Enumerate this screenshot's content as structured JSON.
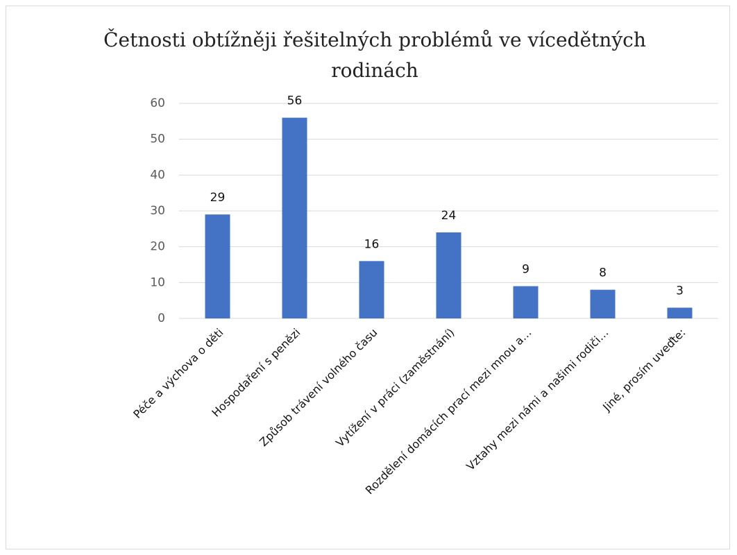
{
  "chart_data": {
    "type": "bar",
    "title": "Četnosti obtížněji řešitelných problémů ve vícedětných rodinách",
    "categories": [
      "Péče a výchova o děti",
      "Hospodaření s penězi",
      "Způsob trávení volného času",
      "Vytížení v práci (zaměstnání)",
      "Rozdělení domácích prací mezi mnou a…",
      "Vztahy mezi námi a našimi rodiči…",
      "Jiné, prosím uveďte:"
    ],
    "values": [
      29,
      56,
      16,
      24,
      9,
      8,
      3
    ],
    "color": "#4472c4",
    "ylim": [
      0,
      60
    ],
    "yticks": [
      0,
      10,
      20,
      30,
      40,
      50,
      60
    ],
    "grid": true
  }
}
